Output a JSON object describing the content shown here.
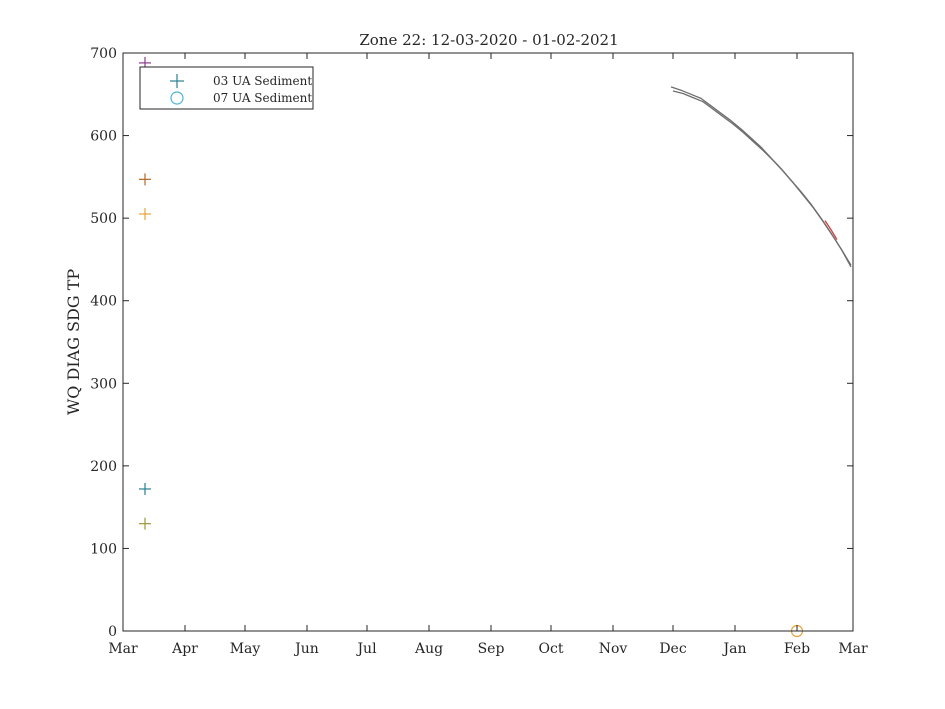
{
  "chart_data": {
    "type": "scatter",
    "title": "Zone 22: 12-03-2020 - 01-02-2021",
    "xlabel": "",
    "ylabel": "WQ DIAG SDG TP",
    "x_range": [
      "2020-03-01",
      "2021-03-01"
    ],
    "ylim": [
      0,
      700
    ],
    "yticks": [
      0,
      100,
      200,
      300,
      400,
      500,
      600,
      700
    ],
    "xticks": [
      {
        "date": "2020-03-01",
        "label": "Mar"
      },
      {
        "date": "2020-04-01",
        "label": "Apr"
      },
      {
        "date": "2020-05-01",
        "label": "May"
      },
      {
        "date": "2020-06-01",
        "label": "Jun"
      },
      {
        "date": "2020-07-01",
        "label": "Jul"
      },
      {
        "date": "2020-08-01",
        "label": "Aug"
      },
      {
        "date": "2020-09-01",
        "label": "Sep"
      },
      {
        "date": "2020-10-01",
        "label": "Oct"
      },
      {
        "date": "2020-11-01",
        "label": "Nov"
      },
      {
        "date": "2020-12-01",
        "label": "Dec"
      },
      {
        "date": "2021-01-01",
        "label": "Jan"
      },
      {
        "date": "2021-02-01",
        "label": "Feb"
      },
      {
        "date": "2021-03-01",
        "label": "Mar"
      }
    ],
    "grid": false,
    "legend_position": "top-left",
    "legend": [
      {
        "label": "03 UA Sediment",
        "marker": "plus",
        "color": "#2a7f95"
      },
      {
        "label": "07 UA Sediment",
        "marker": "circle",
        "color": "#4ab5d4"
      }
    ],
    "points": [
      {
        "date": "2020-03-12",
        "value": 688,
        "marker": "plus",
        "color": "#8b3a8e"
      },
      {
        "date": "2020-03-12",
        "value": 547,
        "marker": "plus",
        "color": "#b0682a"
      },
      {
        "date": "2020-03-12",
        "value": 505,
        "marker": "plus",
        "color": "#e6a53a"
      },
      {
        "date": "2020-03-12",
        "value": 172,
        "marker": "plus",
        "color": "#2a7f95"
      },
      {
        "date": "2020-03-12",
        "value": 130,
        "marker": "plus",
        "color": "#9a9a3a"
      },
      {
        "date": "2021-02-01",
        "value": 0,
        "marker": "circle",
        "color": "#e6a53a"
      }
    ],
    "model_series": [
      {
        "color": "#6e6e6e",
        "points": [
          [
            "2020-11-30",
            659
          ],
          [
            "2020-12-05",
            655
          ],
          [
            "2020-12-10",
            650
          ],
          [
            "2020-12-15",
            645
          ],
          [
            "2020-12-20",
            636
          ],
          [
            "2020-12-25",
            627
          ],
          [
            "2020-12-30",
            618
          ],
          [
            "2021-01-04",
            608
          ],
          [
            "2021-01-09",
            597
          ],
          [
            "2021-01-14",
            586
          ],
          [
            "2021-01-19",
            573
          ],
          [
            "2021-01-24",
            560
          ],
          [
            "2021-01-29",
            546
          ],
          [
            "2021-02-03",
            532
          ],
          [
            "2021-02-08",
            517
          ],
          [
            "2021-02-13",
            500
          ],
          [
            "2021-02-18",
            482
          ],
          [
            "2021-02-23",
            463
          ],
          [
            "2021-02-28",
            441
          ]
        ]
      },
      {
        "color": "#6e6e6e",
        "points": [
          [
            "2020-12-01",
            654
          ],
          [
            "2020-12-06",
            651
          ],
          [
            "2020-12-11",
            646
          ],
          [
            "2020-12-16",
            641
          ],
          [
            "2020-12-21",
            632
          ],
          [
            "2020-12-26",
            623
          ],
          [
            "2020-12-31",
            614
          ],
          [
            "2021-01-05",
            604
          ],
          [
            "2021-01-10",
            593
          ],
          [
            "2021-01-15",
            582
          ],
          [
            "2021-01-20",
            570
          ],
          [
            "2021-01-25",
            557
          ],
          [
            "2021-01-30",
            543
          ],
          [
            "2021-02-04",
            528
          ],
          [
            "2021-02-09",
            513
          ],
          [
            "2021-02-14",
            496
          ],
          [
            "2021-02-19",
            478
          ],
          [
            "2021-02-24",
            459
          ],
          [
            "2021-02-28",
            443
          ]
        ]
      },
      {
        "color": "#d43a3a",
        "points": [
          [
            "2021-02-15",
            497
          ],
          [
            "2021-02-18",
            486
          ],
          [
            "2021-02-21",
            474
          ]
        ]
      }
    ]
  }
}
